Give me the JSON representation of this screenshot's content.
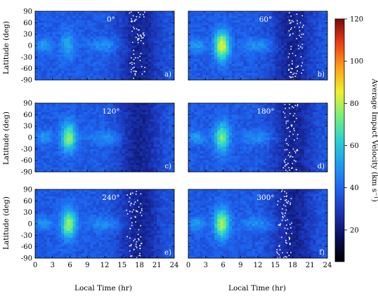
{
  "chart_data": {
    "type": "heatmap",
    "xlabel": "Local Time (hr)",
    "ylabel": "Latitude (deg)",
    "xlim": [
      0,
      24
    ],
    "ylim": [
      -90,
      90
    ],
    "x_ticks": [
      "0",
      "3",
      "6",
      "9",
      "12",
      "15",
      "18",
      "21",
      "24"
    ],
    "y_ticks": [
      "90",
      "60",
      "30",
      "0",
      "-30",
      "-60",
      "-90"
    ],
    "colorbar": {
      "label": "Average Impact Velocity (km s⁻¹)",
      "range": [
        5,
        120
      ],
      "ticks": [
        "120",
        "100",
        "80",
        "60",
        "40",
        "20"
      ],
      "colors": [
        "#000000",
        "#0a0f5a",
        "#1a32b4",
        "#1e64f0",
        "#1e9bf0",
        "#28d2d2",
        "#78f078",
        "#f0f028",
        "#ffa014",
        "#f03c14",
        "#780a0a"
      ]
    },
    "panels": [
      {
        "label": "0°",
        "tag": "a)",
        "hotspot_lt": 5.6,
        "hotspot_strength": 0.35,
        "noise_band_lt": 17.5
      },
      {
        "label": "60°",
        "tag": "b)",
        "hotspot_lt": 5.8,
        "hotspot_strength": 1.0,
        "noise_band_lt": 18.5
      },
      {
        "label": "120°",
        "tag": "c)",
        "hotspot_lt": 5.8,
        "hotspot_strength": 0.8,
        "noise_band_lt": null
      },
      {
        "label": "180°",
        "tag": "d)",
        "hotspot_lt": 5.8,
        "hotspot_strength": 0.75,
        "noise_band_lt": 17.6
      },
      {
        "label": "240°",
        "tag": "e)",
        "hotspot_lt": 5.8,
        "hotspot_strength": 0.85,
        "noise_band_lt": 17.0
      },
      {
        "label": "300°",
        "tag": "f)",
        "hotspot_lt": 5.8,
        "hotspot_strength": 0.9,
        "noise_band_lt": 16.5
      }
    ]
  }
}
